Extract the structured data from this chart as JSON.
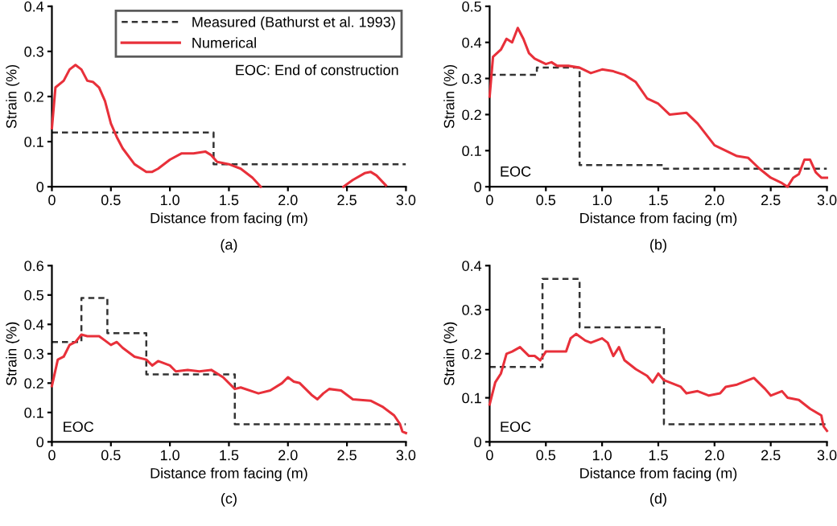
{
  "chart_data": [
    {
      "type": "line",
      "xlabel": "Distance from facing (m)",
      "ylabel": "Strain (%)",
      "xlim": [
        0,
        3
      ],
      "ylim": [
        0,
        0.4
      ],
      "xticks": [
        0,
        0.5,
        {
          "value": 1,
          "label": "1.0"
        },
        1.5,
        {
          "value": 2,
          "label": "2.0"
        },
        2.5,
        {
          "value": 3,
          "label": "3.0"
        }
      ],
      "yticks": [
        0,
        0.1,
        0.2,
        0.3,
        0.4
      ],
      "legend": "top right",
      "annotations": [
        "EOC: End of construction",
        "(a)"
      ],
      "series": [
        {
          "name": "Measured (Bathurst et al. 1993)",
          "type": "step",
          "line_style": "dashed",
          "color": "#333333",
          "x": [
            0,
            1.37,
            3.0
          ],
          "values": [
            0.12,
            0.05,
            0.05
          ]
        },
        {
          "name": "Numerical",
          "line_style": "solid",
          "color": "#e8303a",
          "x": [
            0,
            0.03,
            0.1,
            0.15,
            0.2,
            0.25,
            0.3,
            0.35,
            0.4,
            0.45,
            0.5,
            0.55,
            0.6,
            0.7,
            0.8,
            0.85,
            0.9,
            1.0,
            1.1,
            1.2,
            1.3,
            1.35,
            1.4,
            1.5,
            1.6,
            1.7,
            1.77,
            2.1,
            2.47,
            2.55,
            2.65,
            2.7,
            2.75,
            2.83
          ],
          "values": [
            0.13,
            0.22,
            0.235,
            0.26,
            0.27,
            0.26,
            0.235,
            0.232,
            0.22,
            0.19,
            0.14,
            0.11,
            0.085,
            0.05,
            0.033,
            0.033,
            0.04,
            0.06,
            0.074,
            0.074,
            0.078,
            0.07,
            0.055,
            0.05,
            0.04,
            0.02,
            0,
            null,
            0,
            0.015,
            0.03,
            0.033,
            0.025,
            0.003
          ]
        }
      ]
    },
    {
      "type": "line",
      "xlabel": "Distance from facing (m)",
      "ylabel": "Strain (%)",
      "xlim": [
        0,
        3
      ],
      "ylim": [
        0,
        0.5
      ],
      "xticks": [
        0,
        0.5,
        {
          "value": 1,
          "label": "1.0"
        },
        1.5,
        {
          "value": 2,
          "label": "2.0"
        },
        2.5,
        {
          "value": 3,
          "label": "3.0"
        }
      ],
      "yticks": [
        0,
        0.1,
        0.2,
        0.3,
        0.4,
        0.5
      ],
      "annotations": [
        "EOC",
        "(b)"
      ],
      "series": [
        {
          "type": "step",
          "line_style": "dashed",
          "color": "#333333",
          "x": [
            0,
            0.42,
            0.8,
            1.55,
            3.0
          ],
          "values": [
            0.31,
            0.33,
            0.06,
            0.05,
            0.05
          ]
        },
        {
          "line_style": "solid",
          "color": "#e8303a",
          "x": [
            0,
            0.03,
            0.1,
            0.15,
            0.2,
            0.25,
            0.3,
            0.35,
            0.4,
            0.5,
            0.55,
            0.6,
            0.7,
            0.8,
            0.9,
            1.0,
            1.1,
            1.2,
            1.3,
            1.4,
            1.5,
            1.6,
            1.75,
            1.85,
            2.0,
            2.1,
            2.2,
            2.3,
            2.4,
            2.5,
            2.6,
            2.65,
            2.7,
            2.75,
            2.8,
            2.85,
            2.9,
            2.95,
            3.0
          ],
          "values": [
            0.25,
            0.36,
            0.38,
            0.41,
            0.4,
            0.44,
            0.41,
            0.37,
            0.355,
            0.34,
            0.345,
            0.335,
            0.335,
            0.33,
            0.315,
            0.325,
            0.32,
            0.31,
            0.29,
            0.245,
            0.23,
            0.2,
            0.205,
            0.175,
            0.115,
            0.1,
            0.085,
            0.08,
            0.05,
            0.025,
            0.01,
            0.0,
            0.025,
            0.035,
            0.075,
            0.075,
            0.04,
            0.025,
            0.025
          ]
        }
      ]
    },
    {
      "type": "line",
      "xlabel": "Distance from facing (m)",
      "ylabel": "Strain (%)",
      "xlim": [
        0,
        3
      ],
      "ylim": [
        0,
        0.6
      ],
      "xticks": [
        0,
        0.5,
        {
          "value": 1,
          "label": "1.0"
        },
        1.5,
        {
          "value": 2,
          "label": "2.0"
        },
        2.5,
        {
          "value": 3,
          "label": "3.0"
        }
      ],
      "yticks": [
        0,
        0.1,
        0.2,
        0.3,
        0.4,
        0.5,
        0.6
      ],
      "annotations": [
        "EOC",
        "(c)"
      ],
      "series": [
        {
          "type": "step",
          "line_style": "dashed",
          "color": "#333333",
          "x": [
            0,
            0.25,
            0.47,
            0.8,
            1.55,
            3.0
          ],
          "values": [
            0.34,
            0.49,
            0.37,
            0.23,
            0.06,
            0.06
          ]
        },
        {
          "line_style": "solid",
          "color": "#e8303a",
          "x": [
            0,
            0.05,
            0.1,
            0.15,
            0.2,
            0.25,
            0.3,
            0.4,
            0.45,
            0.5,
            0.55,
            0.6,
            0.7,
            0.8,
            0.85,
            0.9,
            1.0,
            1.05,
            1.15,
            1.25,
            1.35,
            1.45,
            1.55,
            1.6,
            1.75,
            1.85,
            1.95,
            2.0,
            2.05,
            2.1,
            2.2,
            2.25,
            2.3,
            2.35,
            2.45,
            2.55,
            2.7,
            2.8,
            2.9,
            2.95,
            2.97,
            3.0
          ],
          "values": [
            0.19,
            0.28,
            0.29,
            0.33,
            0.34,
            0.365,
            0.36,
            0.36,
            0.345,
            0.33,
            0.34,
            0.32,
            0.29,
            0.28,
            0.26,
            0.275,
            0.26,
            0.24,
            0.245,
            0.24,
            0.245,
            0.22,
            0.18,
            0.185,
            0.165,
            0.175,
            0.2,
            0.22,
            0.205,
            0.2,
            0.16,
            0.145,
            0.165,
            0.18,
            0.175,
            0.145,
            0.14,
            0.12,
            0.09,
            0.06,
            0.035,
            0.03
          ]
        }
      ]
    },
    {
      "type": "line",
      "xlabel": "Distance from facing (m)",
      "ylabel": "Strain (%)",
      "xlim": [
        0,
        3
      ],
      "ylim": [
        0,
        0.4
      ],
      "xticks": [
        0,
        0.5,
        {
          "value": 1,
          "label": "1.0"
        },
        1.5,
        {
          "value": 2,
          "label": "2.0"
        },
        2.5,
        {
          "value": 3,
          "label": "3.0"
        }
      ],
      "yticks": [
        0,
        0.1,
        0.2,
        0.3,
        0.4
      ],
      "annotations": [
        "EOC",
        "(d)"
      ],
      "series": [
        {
          "type": "step",
          "line_style": "dashed",
          "color": "#333333",
          "x": [
            0,
            0.47,
            0.8,
            1.55,
            3.0
          ],
          "values": [
            0.17,
            0.37,
            0.26,
            0.04,
            0.04
          ]
        },
        {
          "line_style": "solid",
          "color": "#e8303a",
          "x": [
            0,
            0.05,
            0.1,
            0.15,
            0.2,
            0.27,
            0.35,
            0.4,
            0.45,
            0.5,
            0.6,
            0.68,
            0.72,
            0.77,
            0.85,
            0.9,
            1.0,
            1.05,
            1.1,
            1.15,
            1.2,
            1.3,
            1.4,
            1.45,
            1.5,
            1.55,
            1.6,
            1.7,
            1.75,
            1.85,
            1.95,
            2.05,
            2.1,
            2.2,
            2.3,
            2.35,
            2.45,
            2.5,
            2.6,
            2.65,
            2.75,
            2.85,
            2.95,
            2.97,
            3.0
          ],
          "values": [
            0.085,
            0.135,
            0.155,
            0.2,
            0.205,
            0.215,
            0.195,
            0.195,
            0.185,
            0.205,
            0.205,
            0.205,
            0.235,
            0.245,
            0.23,
            0.225,
            0.235,
            0.225,
            0.195,
            0.215,
            0.185,
            0.165,
            0.15,
            0.135,
            0.155,
            0.14,
            0.135,
            0.125,
            0.11,
            0.115,
            0.105,
            0.11,
            0.125,
            0.13,
            0.14,
            0.145,
            0.12,
            0.105,
            0.115,
            0.1,
            0.095,
            0.075,
            0.06,
            0.035,
            0.025
          ]
        }
      ]
    }
  ]
}
